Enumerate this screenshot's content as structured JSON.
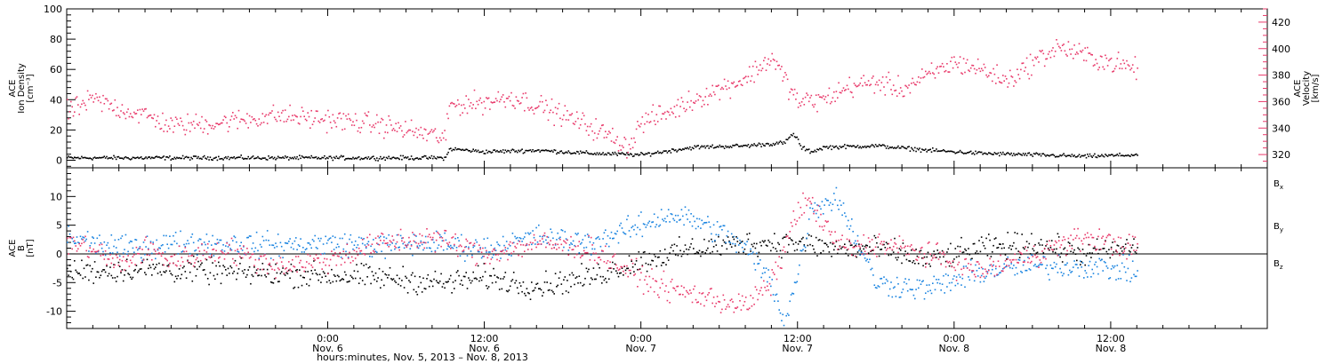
{
  "chart_data": {
    "x_ticks": [
      {
        "time": "0:00",
        "date": "Nov. 6"
      },
      {
        "time": "12:00",
        "date": "Nov. 6"
      },
      {
        "time": "0:00",
        "date": "Nov. 7"
      },
      {
        "time": "12:00",
        "date": "Nov. 7"
      },
      {
        "time": "0:00",
        "date": "Nov. 8"
      },
      {
        "time": "12:00",
        "date": "Nov. 8"
      }
    ],
    "x_tick_hours": [
      24,
      36,
      48,
      60,
      72,
      84
    ],
    "x_range_hours": [
      4,
      96
    ],
    "data_end_hour": 86,
    "xlabel": "hours:minutes, Nov. 5, 2013 – Nov. 8, 2013",
    "panels": [
      {
        "type": "scatter",
        "left_axis": {
          "label_lines": [
            "ACE",
            "Ion Density",
            "[cm⁻³]"
          ],
          "range": [
            -5,
            100
          ],
          "ticks": [
            0,
            20,
            40,
            60,
            80,
            100
          ],
          "color": "#000000"
        },
        "right_axis": {
          "label_lines": [
            "ACE",
            "Velocity",
            "[km/s]"
          ],
          "range": [
            310,
            430
          ],
          "ticks": [
            320,
            340,
            360,
            380,
            400,
            420
          ],
          "color": "#e8396a"
        },
        "series": [
          {
            "color": "#000000",
            "axis": "left",
            "x": [
              4,
              10,
              16,
              22,
              28,
              33,
              33.3,
              36,
              40,
              44,
              48,
              52,
              56,
              59,
              59.6,
              60,
              60.2,
              61,
              62,
              66,
              70,
              74,
              78,
              82,
              86
            ],
            "y": [
              2,
              2,
              2,
              2,
              2,
              2,
              8,
              6,
              7,
              5,
              4,
              9,
              10,
              12,
              18,
              14,
              9,
              6,
              9,
              10,
              7,
              5,
              4,
              3,
              4
            ]
          },
          {
            "color": "#e8396a",
            "axis": "right",
            "x": [
              4,
              6,
              8,
              10,
              12,
              16,
              20,
              24,
              28,
              32,
              33,
              33.3,
              36,
              38,
              40,
              44,
              46,
              47,
              48,
              50,
              52,
              56,
              58,
              60,
              62,
              64,
              66,
              68,
              70,
              72,
              74,
              76,
              78,
              80,
              82,
              84,
              86
            ],
            "y": [
              352,
              362,
              355,
              350,
              342,
              345,
              350,
              347,
              343,
              335,
              333,
              358,
              360,
              364,
              358,
              342,
              332,
              326,
              345,
              352,
              362,
              378,
              394,
              360,
              362,
              372,
              375,
              370,
              380,
              390,
              385,
              376,
              390,
              402,
              395,
              390,
              385
            ]
          }
        ]
      },
      {
        "type": "scatter",
        "left_axis": {
          "label_lines": [
            "ACE",
            "B",
            "[nT]"
          ],
          "range": [
            -13,
            15
          ],
          "ticks": [
            -10,
            -5,
            0,
            5,
            10
          ],
          "color": "#000000"
        },
        "zero_line": true,
        "series": [
          {
            "name": "B",
            "sub": "x",
            "color": "#000000",
            "x": [
              4,
              10,
              16,
              22,
              28,
              33,
              36,
              40,
              44,
              48,
              52,
              56,
              60,
              63,
              66,
              70,
              74,
              78,
              82,
              86
            ],
            "y": [
              -3,
              -2.5,
              -3,
              -3.5,
              -4,
              -5,
              -4,
              -5.5,
              -4,
              -1,
              1,
              2,
              2,
              1,
              1,
              -1,
              1,
              2,
              0,
              1.5
            ]
          },
          {
            "name": "B",
            "sub": "y",
            "color": "#1a84e0",
            "x": [
              4,
              8,
              12,
              16,
              20,
              24,
              28,
              32,
              36,
              40,
              44,
              48,
              50,
              52,
              54,
              56,
              58,
              59,
              60,
              61,
              62,
              63,
              66,
              70,
              74,
              78,
              82,
              86
            ],
            "y": [
              3,
              1,
              2,
              2,
              1.5,
              2,
              1.5,
              2,
              1,
              3,
              2,
              5,
              7,
              6,
              4,
              1,
              -5,
              -12,
              -3,
              8,
              9,
              10,
              -5,
              -6,
              -3,
              -2,
              -2,
              -3
            ]
          },
          {
            "name": "B",
            "sub": "z",
            "color": "#e8396a",
            "x": [
              4,
              6,
              8,
              10,
              12,
              16,
              20,
              24,
              28,
              32,
              36,
              40,
              44,
              48,
              50,
              52,
              54,
              56,
              58,
              60,
              61,
              62,
              63,
              64,
              66,
              70,
              74,
              78,
              82,
              86
            ],
            "y": [
              2,
              1,
              -2,
              1,
              -1,
              1,
              -2,
              -1,
              2,
              3,
              0,
              2,
              1,
              -4,
              -6,
              -7,
              -8,
              -9,
              -5,
              8,
              9,
              5,
              2,
              1,
              2,
              0,
              -3,
              0,
              3,
              1
            ]
          }
        ]
      }
    ]
  }
}
